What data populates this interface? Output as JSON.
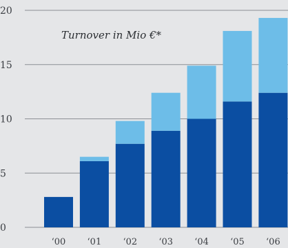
{
  "chart_data": {
    "type": "bar",
    "stacked": true,
    "title": "Turnover in Mio €*",
    "categories": [
      "‘00",
      "‘01",
      "‘02",
      "‘03",
      "‘04",
      "‘05",
      "‘06"
    ],
    "series": [
      {
        "values": [
          2.8,
          6.1,
          7.7,
          8.9,
          10.0,
          11.6,
          12.4
        ],
        "color": "#0b4ea2"
      },
      {
        "values": [
          0.0,
          0.4,
          2.1,
          3.5,
          4.9,
          6.5,
          6.9
        ],
        "color": "#6dbde8"
      }
    ],
    "yticks": [
      0,
      5,
      10,
      15,
      20
    ],
    "ylim": [
      0,
      20
    ],
    "grid": true
  }
}
